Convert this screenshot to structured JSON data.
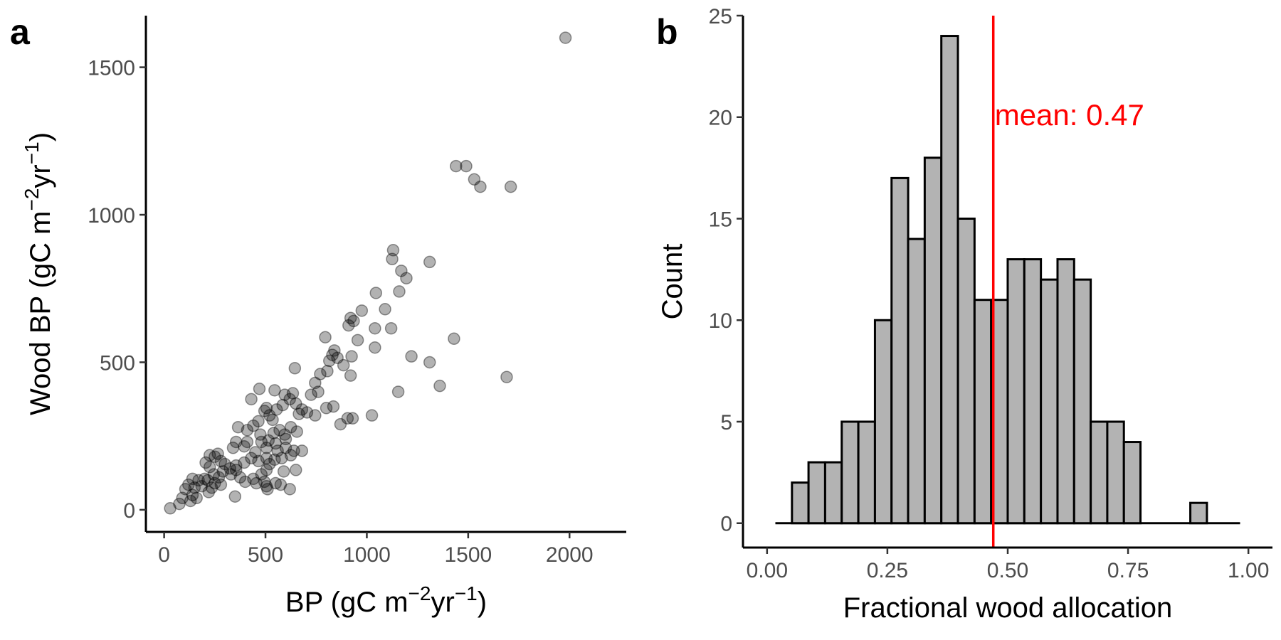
{
  "chart_data": [
    {
      "panel": "a",
      "type": "scatter",
      "xlabel": {
        "base": "BP (gC m",
        "sup1": "−2",
        "mid": "yr",
        "sup2": "−1",
        "end": ")"
      },
      "ylabel": {
        "base": "Wood BP (gC m",
        "sup1": "−2",
        "mid": "yr",
        "sup2": "−1",
        "end": ")"
      },
      "xlim": [
        -90,
        2280
      ],
      "ylim": [
        -75,
        1675
      ],
      "xticks": [
        0,
        500,
        1000,
        1500,
        2000
      ],
      "xtick_labels": [
        "0",
        "500",
        "1000",
        "1500",
        "2000"
      ],
      "yticks": [
        0,
        500,
        1000,
        1500
      ],
      "ytick_labels": [
        "0",
        "500",
        "1000",
        "1500"
      ],
      "point_color": "#000000",
      "point_opacity": 0.3,
      "points": [
        [
          1980,
          1600
        ],
        [
          1440,
          1165
        ],
        [
          1490,
          1165
        ],
        [
          1530,
          1120
        ],
        [
          1560,
          1095
        ],
        [
          1710,
          1095
        ],
        [
          1130,
          880
        ],
        [
          1125,
          850
        ],
        [
          1310,
          840
        ],
        [
          1170,
          810
        ],
        [
          1195,
          785
        ],
        [
          1160,
          740
        ],
        [
          1045,
          735
        ],
        [
          1090,
          680
        ],
        [
          975,
          675
        ],
        [
          920,
          650
        ],
        [
          935,
          640
        ],
        [
          910,
          625
        ],
        [
          1040,
          615
        ],
        [
          1120,
          615
        ],
        [
          1430,
          580
        ],
        [
          795,
          585
        ],
        [
          955,
          575
        ],
        [
          840,
          540
        ],
        [
          830,
          525
        ],
        [
          855,
          515
        ],
        [
          815,
          505
        ],
        [
          925,
          520
        ],
        [
          1040,
          550
        ],
        [
          1220,
          520
        ],
        [
          1310,
          500
        ],
        [
          885,
          490
        ],
        [
          805,
          470
        ],
        [
          770,
          460
        ],
        [
          920,
          455
        ],
        [
          645,
          480
        ],
        [
          1360,
          420
        ],
        [
          1690,
          450
        ],
        [
          745,
          430
        ],
        [
          1155,
          400
        ],
        [
          760,
          400
        ],
        [
          725,
          390
        ],
        [
          470,
          410
        ],
        [
          545,
          405
        ],
        [
          635,
          395
        ],
        [
          595,
          390
        ],
        [
          620,
          375
        ],
        [
          430,
          375
        ],
        [
          650,
          360
        ],
        [
          585,
          355
        ],
        [
          505,
          345
        ],
        [
          555,
          340
        ],
        [
          680,
          340
        ],
        [
          665,
          325
        ],
        [
          705,
          330
        ],
        [
          745,
          320
        ],
        [
          835,
          350
        ],
        [
          800,
          345
        ],
        [
          905,
          310
        ],
        [
          930,
          310
        ],
        [
          1025,
          320
        ],
        [
          870,
          290
        ],
        [
          495,
          335
        ],
        [
          520,
          320
        ],
        [
          535,
          305
        ],
        [
          465,
          300
        ],
        [
          440,
          285
        ],
        [
          365,
          280
        ],
        [
          410,
          270
        ],
        [
          475,
          255
        ],
        [
          540,
          260
        ],
        [
          570,
          270
        ],
        [
          595,
          255
        ],
        [
          625,
          280
        ],
        [
          655,
          265
        ],
        [
          600,
          240
        ],
        [
          550,
          225
        ],
        [
          515,
          235
        ],
        [
          480,
          230
        ],
        [
          410,
          230
        ],
        [
          355,
          230
        ],
        [
          340,
          210
        ],
        [
          395,
          215
        ],
        [
          450,
          195
        ],
        [
          505,
          210
        ],
        [
          560,
          200
        ],
        [
          600,
          210
        ],
        [
          640,
          200
        ],
        [
          680,
          200
        ],
        [
          625,
          185
        ],
        [
          580,
          175
        ],
        [
          545,
          170
        ],
        [
          505,
          175
        ],
        [
          465,
          165
        ],
        [
          430,
          175
        ],
        [
          395,
          160
        ],
        [
          355,
          150
        ],
        [
          325,
          140
        ],
        [
          300,
          155
        ],
        [
          280,
          165
        ],
        [
          250,
          180
        ],
        [
          225,
          185
        ],
        [
          265,
          190
        ],
        [
          205,
          160
        ],
        [
          225,
          145
        ],
        [
          245,
          120
        ],
        [
          270,
          110
        ],
        [
          290,
          130
        ],
        [
          330,
          120
        ],
        [
          355,
          135
        ],
        [
          375,
          110
        ],
        [
          400,
          95
        ],
        [
          440,
          105
        ],
        [
          480,
          120
        ],
        [
          505,
          135
        ],
        [
          520,
          155
        ],
        [
          495,
          95
        ],
        [
          455,
          90
        ],
        [
          505,
          80
        ],
        [
          550,
          90
        ],
        [
          590,
          130
        ],
        [
          650,
          135
        ],
        [
          620,
          70
        ],
        [
          510,
          70
        ],
        [
          575,
          85
        ],
        [
          200,
          105
        ],
        [
          170,
          100
        ],
        [
          140,
          105
        ],
        [
          120,
          85
        ],
        [
          105,
          70
        ],
        [
          140,
          50
        ],
        [
          160,
          40
        ],
        [
          130,
          30
        ],
        [
          90,
          40
        ],
        [
          75,
          20
        ],
        [
          30,
          5
        ],
        [
          220,
          60
        ],
        [
          235,
          75
        ],
        [
          250,
          90
        ],
        [
          215,
          100
        ],
        [
          185,
          80
        ],
        [
          150,
          75
        ],
        [
          350,
          45
        ],
        [
          280,
          85
        ]
      ]
    },
    {
      "panel": "b",
      "type": "bar",
      "xlabel": "Fractional wood allocation",
      "ylabel": "Count",
      "xlim": [
        -0.05,
        1.05
      ],
      "ylim": [
        -1.2,
        25
      ],
      "xticks": [
        0,
        0.25,
        0.5,
        0.75,
        1
      ],
      "xtick_labels": [
        "0.00",
        "0.25",
        "0.50",
        "0.75",
        "1.00"
      ],
      "yticks": [
        0,
        5,
        10,
        15,
        20,
        25
      ],
      "ytick_labels": [
        "0",
        "5",
        "10",
        "15",
        "20",
        "25"
      ],
      "bin_width": 0.03448,
      "bin_centers": [
        0.0345,
        0.069,
        0.1034,
        0.1379,
        0.1724,
        0.2069,
        0.2414,
        0.2759,
        0.3103,
        0.3448,
        0.3793,
        0.4138,
        0.4483,
        0.4828,
        0.5172,
        0.5517,
        0.5862,
        0.6207,
        0.6552,
        0.6897,
        0.7241,
        0.7586,
        0.7931,
        0.8276,
        0.8621,
        0.8966,
        0.931,
        0.9655
      ],
      "counts": [
        0,
        2,
        3,
        3,
        5,
        5,
        10,
        17,
        14,
        18,
        24,
        15,
        11,
        11,
        13,
        13,
        12,
        13,
        12,
        5,
        5,
        4,
        0,
        0,
        0,
        1,
        0,
        0
      ],
      "bar_fill": "#b3b3b3",
      "bar_stroke": "#000000",
      "mean_value": 0.47,
      "mean_color": "#ff0000",
      "mean_label": "mean: 0.47"
    }
  ],
  "panel_labels": [
    "a",
    "b"
  ]
}
